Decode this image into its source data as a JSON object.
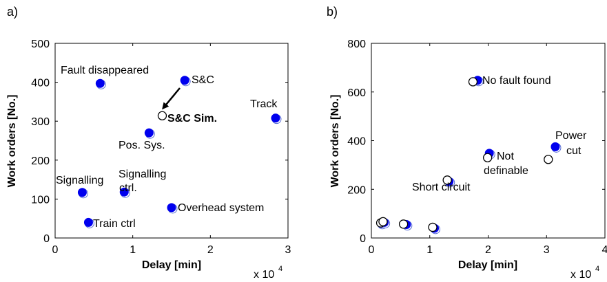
{
  "chart_data": [
    {
      "type": "scatter",
      "panel_label": "a)",
      "xlabel": "Delay [min]",
      "ylabel": "Work orders [No.]",
      "x_multiplier": "x 10",
      "x_multiplier_exp": "4",
      "xlim": [
        0,
        3
      ],
      "ylim": [
        0,
        500
      ],
      "xticks": [
        "0",
        "1",
        "2",
        "3"
      ],
      "yticks": [
        "0",
        "100",
        "200",
        "300",
        "400",
        "500"
      ],
      "grid": false,
      "series": [
        {
          "marker": "filled-circle",
          "color": "#0000ee",
          "points": [
            {
              "x": 0.58,
              "y": 397,
              "label": "Fault disappeared"
            },
            {
              "x": 1.67,
              "y": 405,
              "label": "S&C"
            },
            {
              "x": 2.84,
              "y": 308,
              "label": "Track"
            },
            {
              "x": 1.21,
              "y": 270,
              "label": "Pos. Sys."
            },
            {
              "x": 0.35,
              "y": 117,
              "label": "Signalling"
            },
            {
              "x": 0.89,
              "y": 118,
              "label": "Signalling ctrl."
            },
            {
              "x": 1.5,
              "y": 78,
              "label": "Overhead system"
            },
            {
              "x": 0.43,
              "y": 40,
              "label": "Train ctrl"
            }
          ]
        },
        {
          "marker": "open-circle",
          "color": "#000000",
          "points": [
            {
              "x": 1.38,
              "y": 314,
              "label": "S&C Sim."
            }
          ]
        }
      ],
      "annotations": [
        {
          "text": "Fault disappeared",
          "bold": false
        },
        {
          "text": "S&C",
          "bold": false
        },
        {
          "text": "Track",
          "bold": false
        },
        {
          "text": "S&C Sim.",
          "bold": true
        },
        {
          "text": "Pos. Sys.",
          "bold": false
        },
        {
          "text": "Signalling",
          "bold": false
        },
        {
          "text": "Signalling",
          "bold": false
        },
        {
          "text": "ctrl.",
          "bold": false
        },
        {
          "text": "Overhead system",
          "bold": false
        },
        {
          "text": "Train ctrl",
          "bold": false
        }
      ]
    },
    {
      "type": "scatter",
      "panel_label": "b)",
      "xlabel": "Delay [min]",
      "ylabel": "Work orders [No.]",
      "x_multiplier": "x 10",
      "x_multiplier_exp": "4",
      "xlim": [
        0,
        4
      ],
      "ylim": [
        0,
        800
      ],
      "xticks": [
        "0",
        "1",
        "2",
        "3",
        "4"
      ],
      "yticks": [
        "0",
        "200",
        "400",
        "600",
        "800"
      ],
      "grid": false,
      "series": [
        {
          "marker": "filled-circle",
          "color": "#0000ee",
          "points": [
            {
              "x": 1.82,
              "y": 648,
              "label": "No fault found"
            },
            {
              "x": 2.02,
              "y": 348,
              "label": "Not definable"
            },
            {
              "x": 3.15,
              "y": 375,
              "label": "Power cut"
            },
            {
              "x": 1.33,
              "y": 232,
              "label": "Short circuit"
            },
            {
              "x": 0.17,
              "y": 60
            },
            {
              "x": 0.22,
              "y": 64
            },
            {
              "x": 0.6,
              "y": 55
            },
            {
              "x": 1.08,
              "y": 40
            }
          ]
        },
        {
          "marker": "open-circle",
          "color": "#000000",
          "points": [
            {
              "x": 1.74,
              "y": 642
            },
            {
              "x": 1.99,
              "y": 330
            },
            {
              "x": 3.03,
              "y": 323
            },
            {
              "x": 1.3,
              "y": 238
            },
            {
              "x": 0.16,
              "y": 62
            },
            {
              "x": 0.2,
              "y": 67
            },
            {
              "x": 0.55,
              "y": 57
            },
            {
              "x": 1.05,
              "y": 44
            }
          ]
        }
      ],
      "annotations": [
        {
          "text": "No fault found",
          "bold": false
        },
        {
          "text": "Not",
          "bold": false
        },
        {
          "text": "definable",
          "bold": false
        },
        {
          "text": "Power",
          "bold": false
        },
        {
          "text": "cut",
          "bold": false
        },
        {
          "text": "Short circuit",
          "bold": false
        }
      ]
    }
  ]
}
